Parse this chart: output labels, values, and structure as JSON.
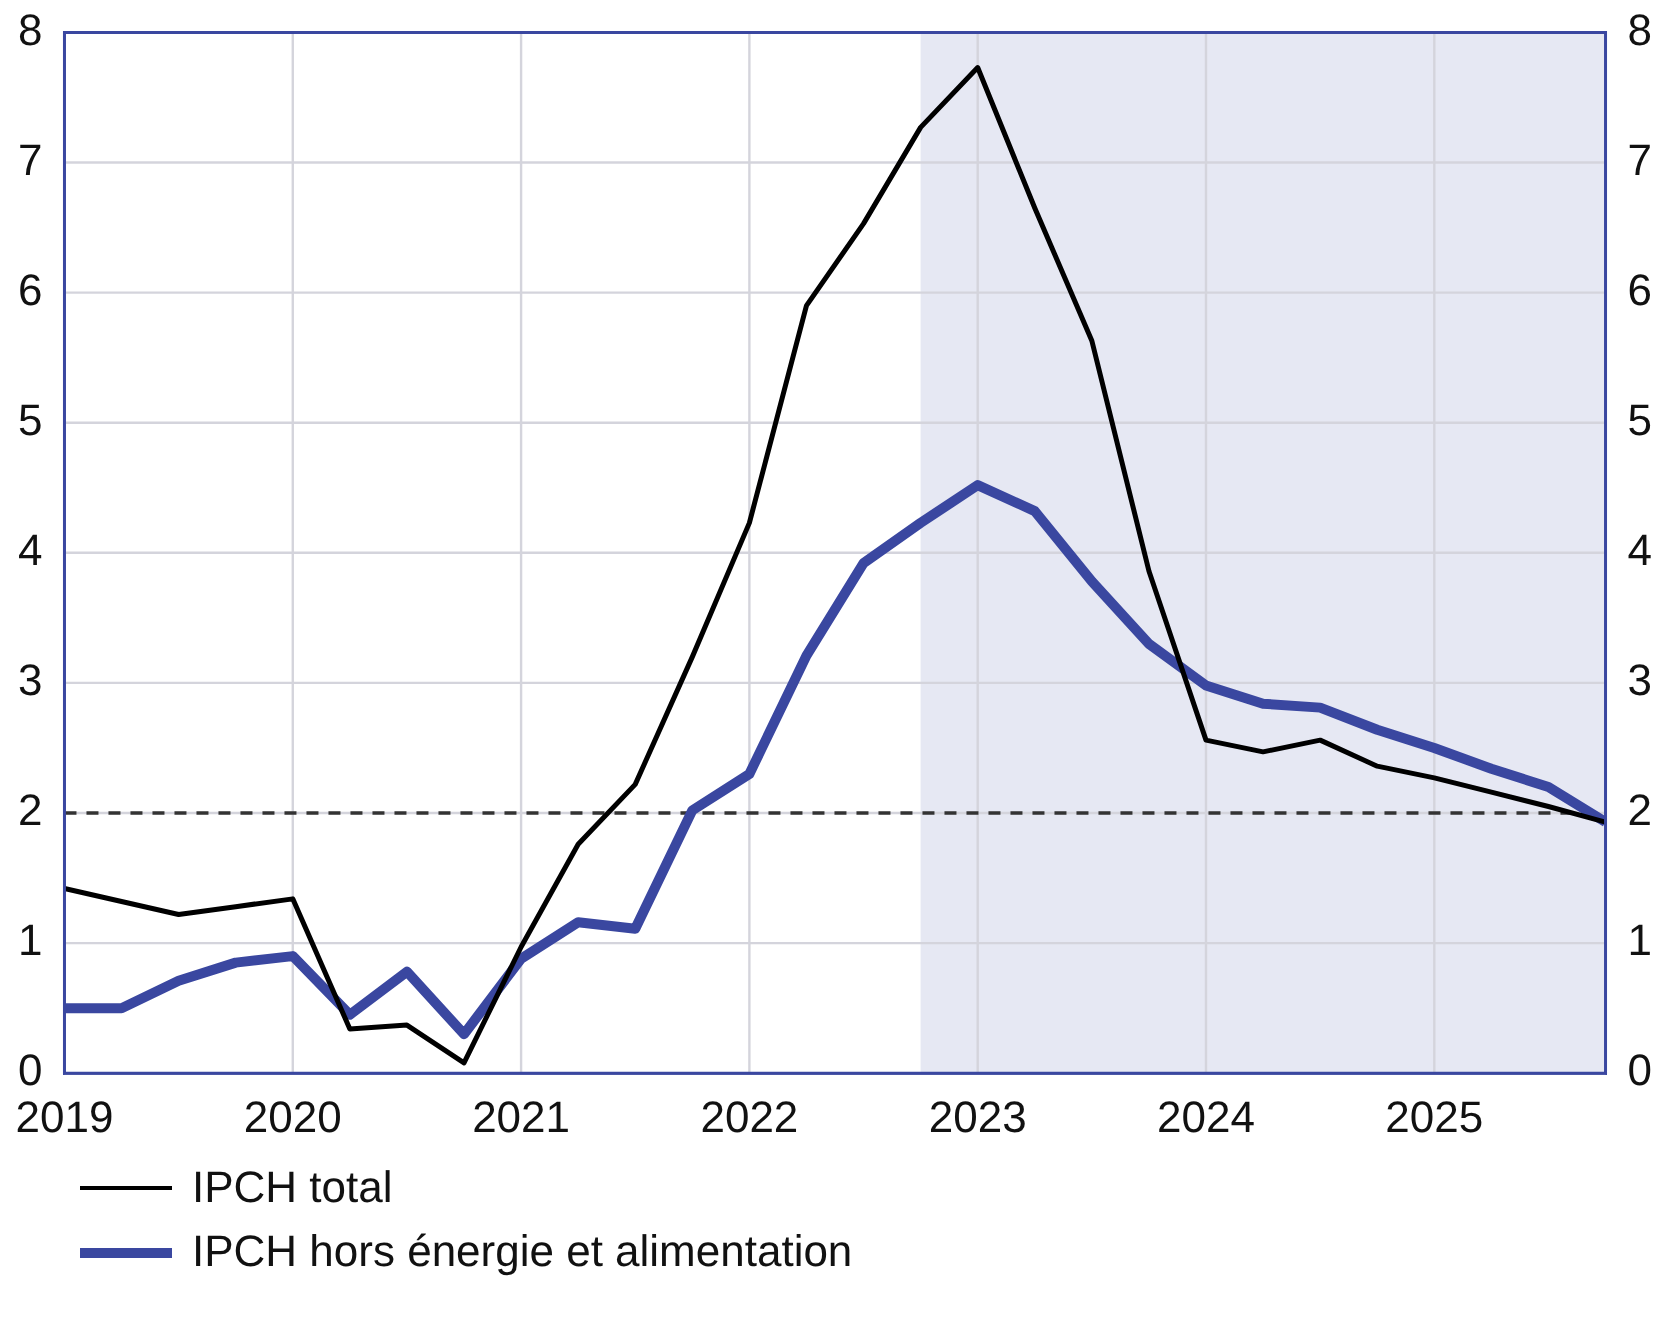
{
  "chart_data": {
    "type": "line",
    "x": [
      2019,
      2019.25,
      2019.5,
      2019.75,
      2020,
      2020.25,
      2020.5,
      2020.75,
      2021,
      2021.25,
      2021.5,
      2021.75,
      2022,
      2022.25,
      2022.5,
      2022.75,
      2023,
      2023.25,
      2023.5,
      2023.75,
      2024,
      2024.25,
      2024.5,
      2024.75,
      2025,
      2025.25,
      2025.5,
      2025.75
    ],
    "series": [
      {
        "name": "IPCH total",
        "color": "#000000",
        "values": [
          1.42,
          1.32,
          1.22,
          1.28,
          1.34,
          0.34,
          0.37,
          0.08,
          0.97,
          1.76,
          2.22,
          3.2,
          4.23,
          5.9,
          6.53,
          7.27,
          7.73,
          6.65,
          5.63,
          3.86,
          2.56,
          2.47,
          2.56,
          2.36,
          2.27,
          2.16,
          2.05,
          1.93
        ]
      },
      {
        "name": "IPCH hors énergie et alimentation",
        "color": "#3a47a0",
        "values": [
          0.5,
          0.5,
          0.71,
          0.85,
          0.9,
          0.45,
          0.78,
          0.3,
          0.88,
          1.16,
          1.11,
          2.02,
          2.3,
          3.21,
          3.92,
          4.23,
          4.52,
          4.32,
          3.78,
          3.3,
          2.98,
          2.84,
          2.81,
          2.64,
          2.5,
          2.34,
          2.2,
          1.93
        ]
      }
    ],
    "xlim": [
      2019,
      2025.75
    ],
    "xticks": [
      2019,
      2020,
      2021,
      2022,
      2023,
      2024,
      2025
    ],
    "ylim": [
      0,
      8
    ],
    "yticks": [
      0,
      1,
      2,
      3,
      4,
      5,
      6,
      7,
      8
    ],
    "y2lim": [
      0,
      8
    ],
    "y2ticks": [
      0,
      1,
      2,
      3,
      4,
      5,
      6,
      7,
      8
    ],
    "ref_lines": [
      {
        "axis": "y",
        "value": 2,
        "color": "#333333",
        "line_style": "dashed"
      }
    ],
    "bands": [
      {
        "axis": "x",
        "from": 2022.75,
        "to": 2025.75,
        "color": "#e6e8f3"
      }
    ],
    "grid": true,
    "legend": "bottom",
    "marker": "none",
    "line_style": "solid"
  }
}
